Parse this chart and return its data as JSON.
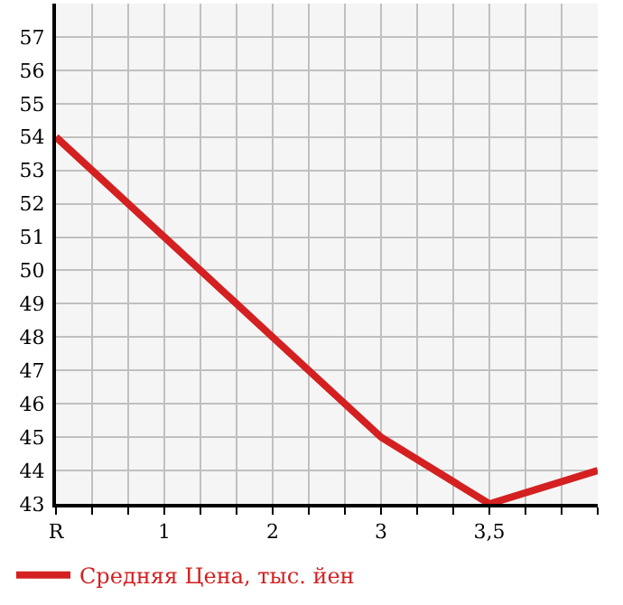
{
  "chart_data": {
    "type": "line",
    "categories": [
      "R",
      "1",
      "2",
      "3",
      "3,5",
      null
    ],
    "series": [
      {
        "name": "Средняя Цена, тыс. йен",
        "color": "#d42020",
        "values": [
          54,
          51,
          48,
          45,
          43,
          44
        ]
      }
    ],
    "ylim": [
      43,
      58
    ],
    "yticks": [
      43,
      44,
      45,
      46,
      47,
      48,
      49,
      50,
      51,
      52,
      53,
      54,
      55,
      56,
      57
    ],
    "grid": true,
    "legend": "bottom left",
    "marker": "none",
    "line_style": "solid"
  }
}
